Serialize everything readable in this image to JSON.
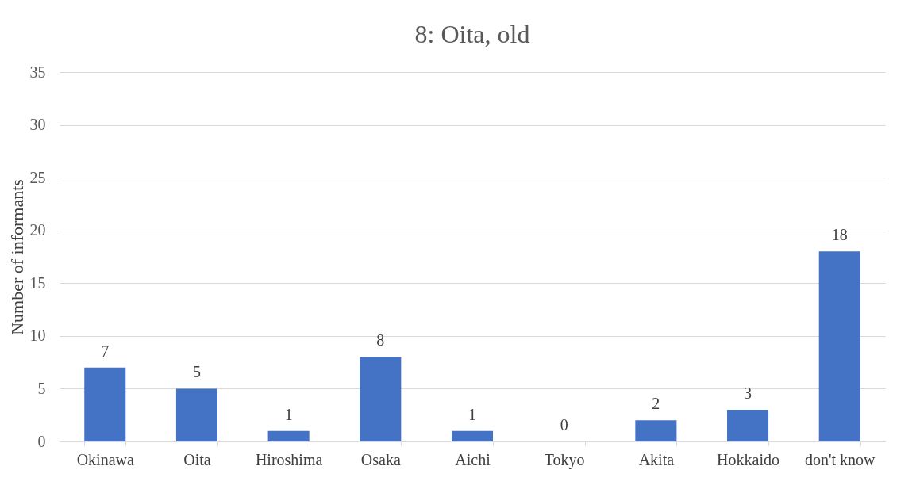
{
  "chart_data": {
    "type": "bar",
    "title": "8: Oita, old",
    "ylabel": "Number of informants",
    "categories": [
      "Okinawa",
      "Oita",
      "Hiroshima",
      "Osaka",
      "Aichi",
      "Tokyo",
      "Akita",
      "Hokkaido",
      "don't know"
    ],
    "values": [
      7,
      5,
      1,
      8,
      1,
      0,
      2,
      3,
      18
    ],
    "color": "#4472c4",
    "ylim": [
      0,
      35
    ],
    "yticks": [
      0,
      5,
      10,
      15,
      20,
      25,
      30,
      35
    ],
    "grid": "y",
    "data_labels": true
  }
}
